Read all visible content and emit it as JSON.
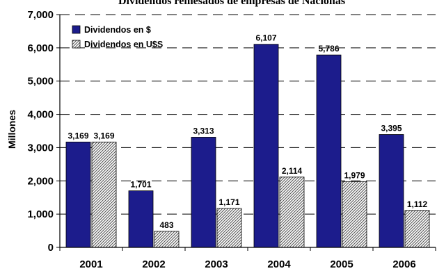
{
  "chart_data": {
    "type": "bar",
    "title": "Dividendos remesados de empresas de Nacionas",
    "ylabel": "Millones",
    "xlabel": "",
    "categories": [
      "2001",
      "2002",
      "2003",
      "2004",
      "2005",
      "2006"
    ],
    "ylim": [
      0,
      7000
    ],
    "yticks": [
      "0",
      "1,000",
      "2,000",
      "3,000",
      "4,000",
      "5,000",
      "6,000",
      "7,000"
    ],
    "grid": true,
    "legend_position": "top-left",
    "series": [
      {
        "name": "Dividendos en $",
        "color": "#1c1c8c",
        "values": [
          3169,
          1701,
          3313,
          6107,
          5786,
          3395
        ],
        "labels": [
          "3,169",
          "1,701",
          "3,313",
          "6,107",
          "5,786",
          "3,395"
        ]
      },
      {
        "name": "Dividendos en U$S",
        "color": "#b8b8b8",
        "pattern": "diagonal-hatch",
        "values": [
          3169,
          483,
          1171,
          2114,
          1979,
          1112
        ],
        "labels": [
          "3,169",
          "483",
          "1,171",
          "2,114",
          "1,979",
          "1,112"
        ]
      }
    ]
  }
}
